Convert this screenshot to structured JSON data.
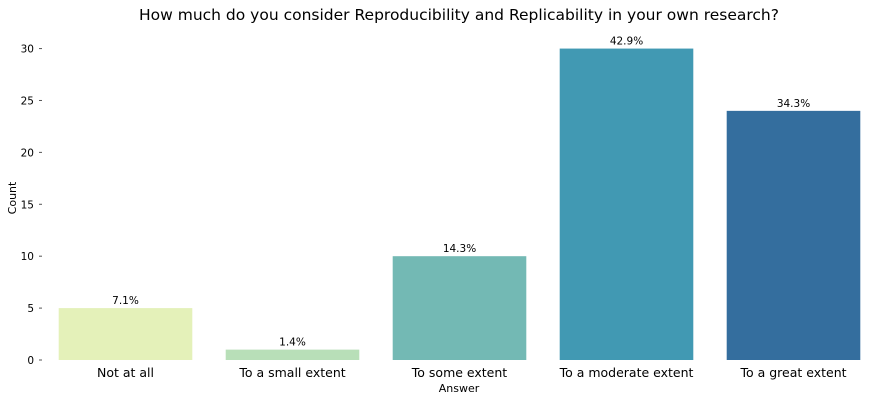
{
  "chart_data": {
    "type": "bar",
    "title": "How much do you consider Reproducibility and Replicability in your own research?",
    "xlabel": "Answer",
    "ylabel": "Count",
    "categories": [
      "Not at all",
      "To a small extent",
      "To some extent",
      "To a moderate extent",
      "To a great extent"
    ],
    "values": [
      5,
      1,
      10,
      30,
      24
    ],
    "data_labels": [
      "7.1%",
      "1.4%",
      "14.3%",
      "42.9%",
      "34.3%"
    ],
    "colors": [
      "#e4f1b9",
      "#b8dfb8",
      "#73b9b4",
      "#4199b3",
      "#346e9e"
    ],
    "ylim": [
      0,
      31.5
    ],
    "yticks": [
      0,
      5,
      10,
      15,
      20,
      25,
      30
    ],
    "grid": false,
    "legend": "none"
  }
}
